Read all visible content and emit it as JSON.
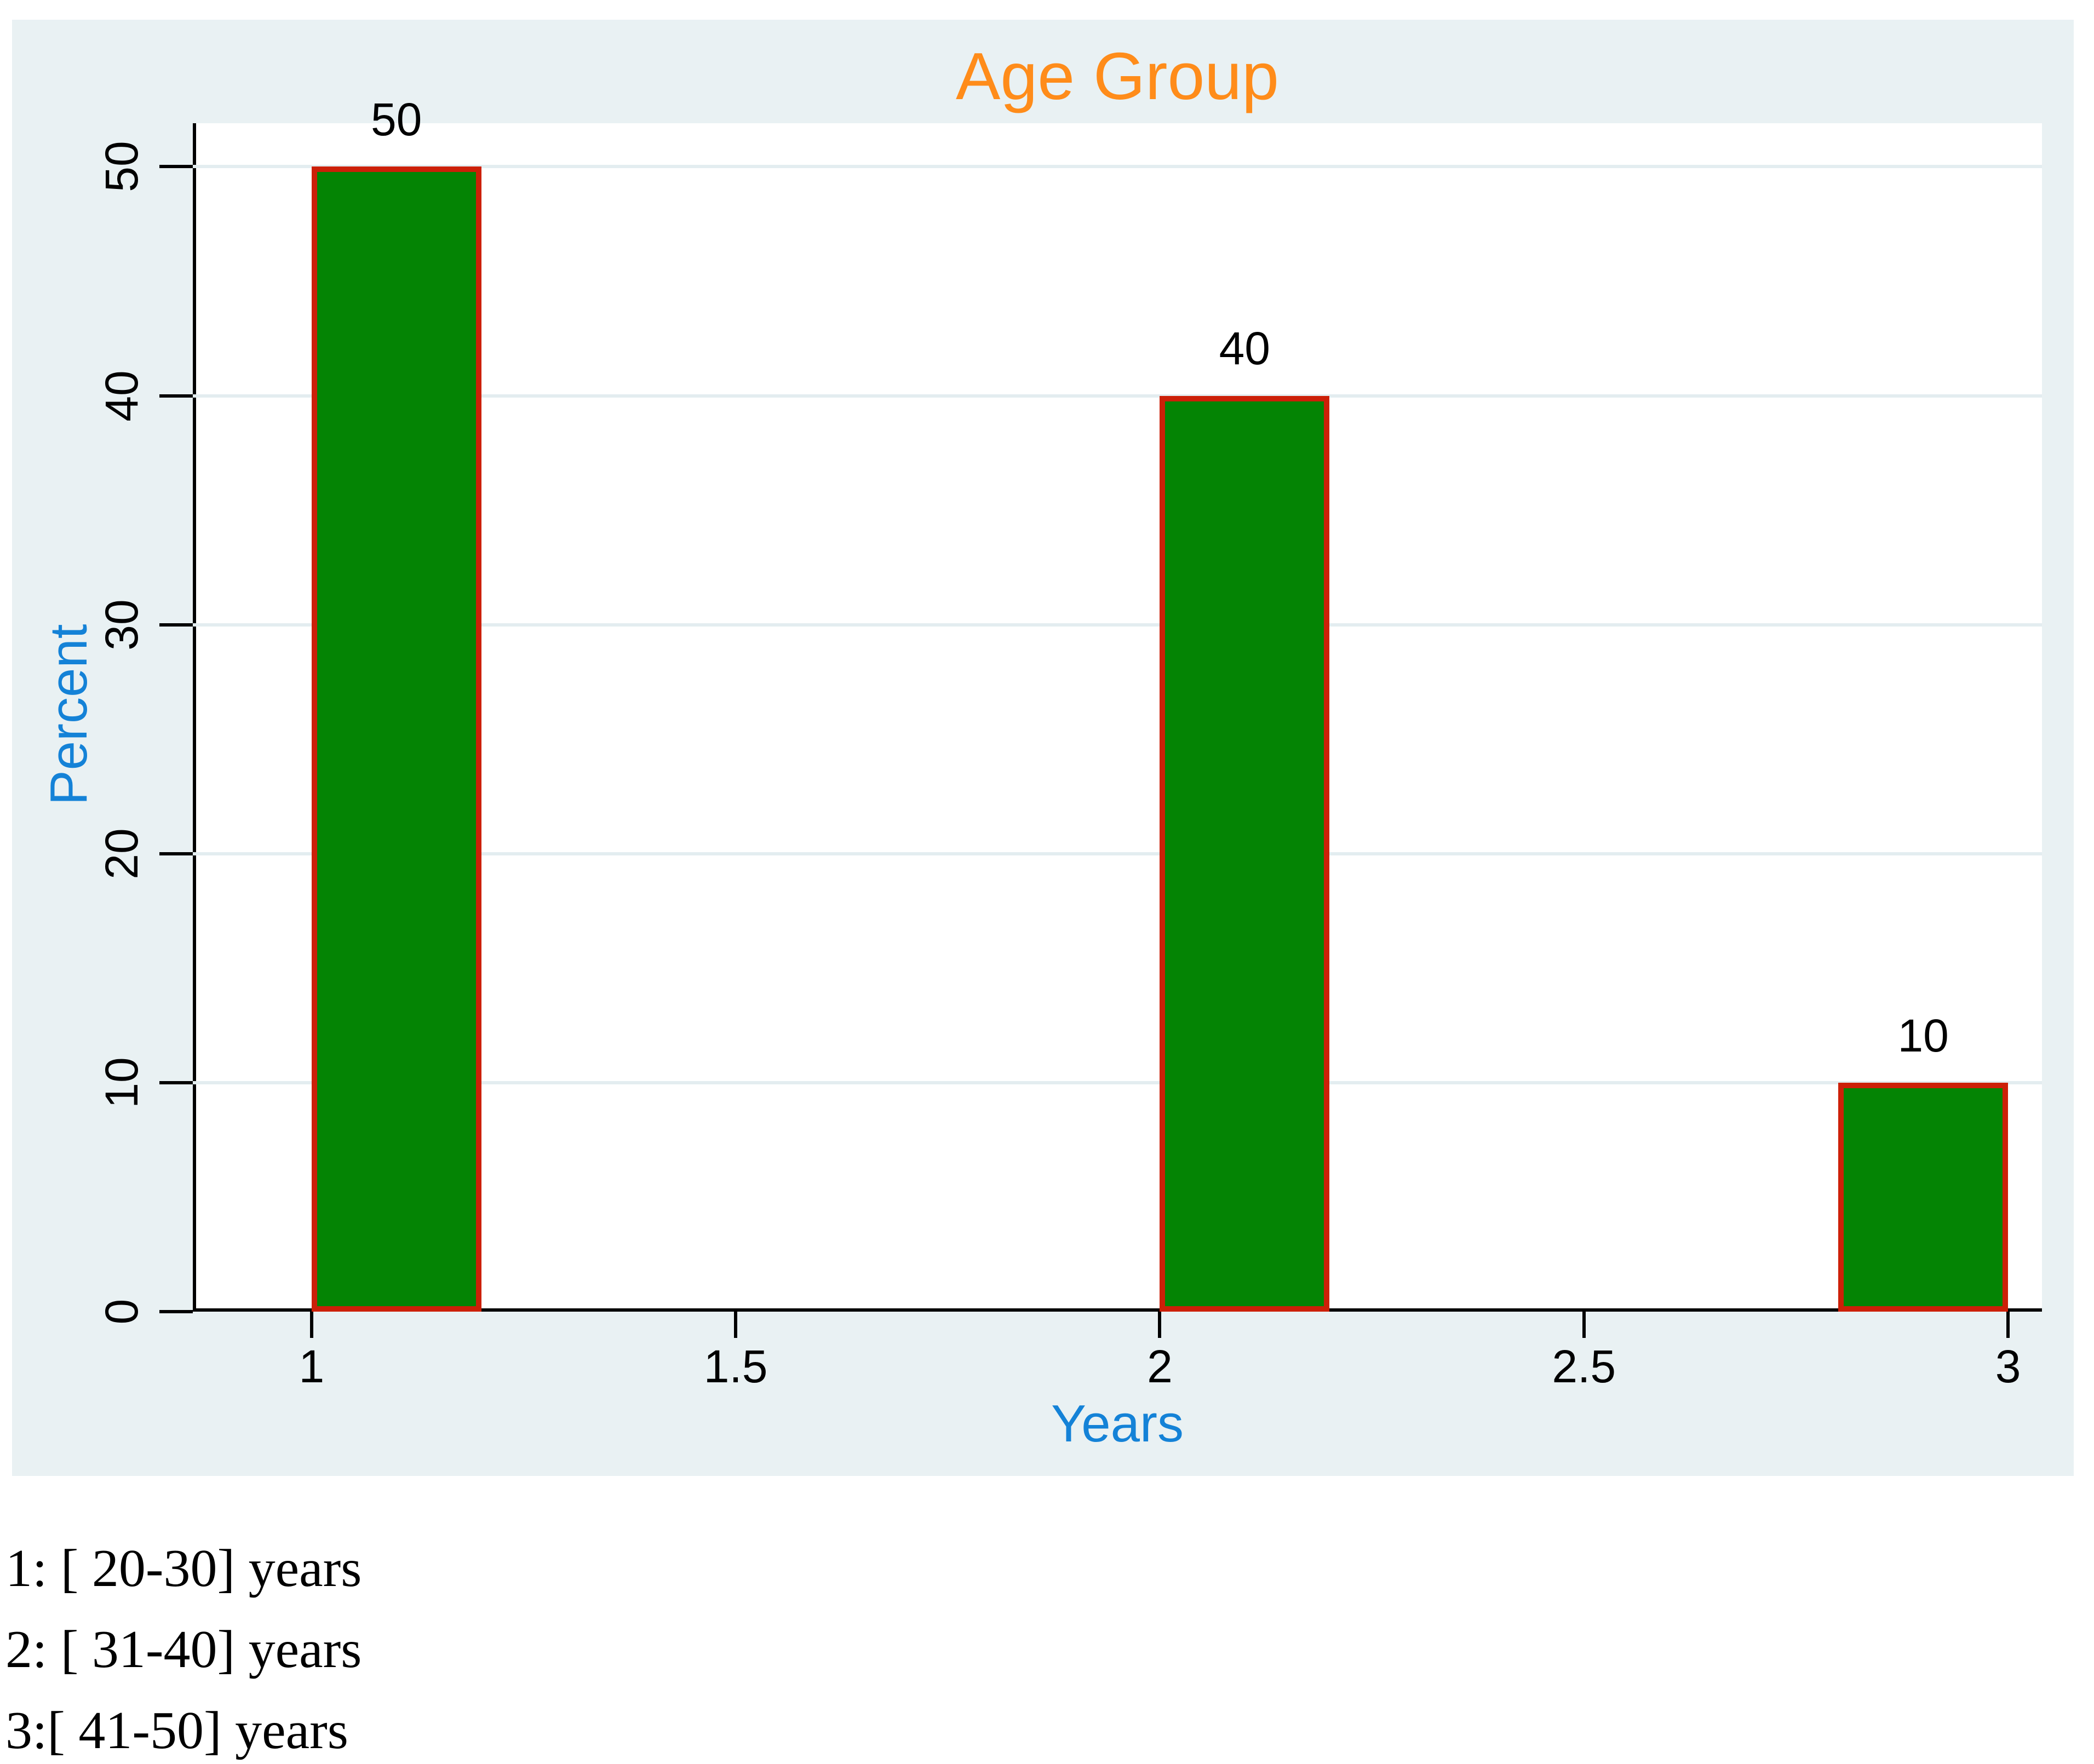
{
  "colors": {
    "graph_bg": "#E9F1F3",
    "plot_bg": "#FFFFFF",
    "grid": "#E3EDF0",
    "axis": "#000000",
    "bar_fill": "#048404",
    "bar_border": "#CC2008",
    "title": "#FF8C1A",
    "axis_title": "#1482D7"
  },
  "chart_data": {
    "type": "bar",
    "title": "Age Group",
    "xlabel": "Years",
    "ylabel": "Percent",
    "xlim": [
      0.86,
      3.04
    ],
    "ylim": [
      0,
      51.9
    ],
    "xticks": [
      1,
      1.5,
      2,
      2.5,
      3
    ],
    "yticks": [
      0,
      10,
      20,
      30,
      40,
      50
    ],
    "grid": "horizontal",
    "legend_position": "none",
    "bars": [
      {
        "x0": 1.0,
        "x1": 1.2,
        "value": 50,
        "label": "50",
        "category": "[ 20-30] years"
      },
      {
        "x0": 2.0,
        "x1": 2.2,
        "value": 40,
        "label": "40",
        "category": "[ 31-40] years"
      },
      {
        "x0": 2.8,
        "x1": 3.0,
        "value": 10,
        "label": "10",
        "category": "[ 41-50] years"
      }
    ],
    "footnotes": [
      "1: [ 20-30] years",
      "2: [ 31-40] years",
      "3:[ 41-50] years"
    ]
  }
}
